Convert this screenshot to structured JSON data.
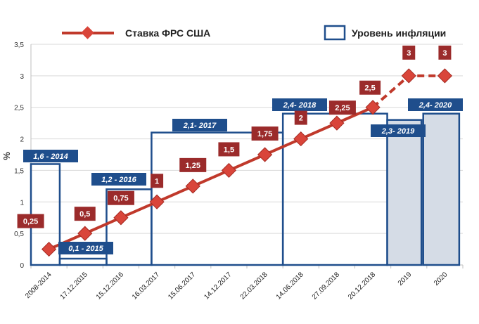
{
  "chart_data": {
    "type": "line",
    "title": "",
    "xlabel": "",
    "ylabel": "%",
    "ylim": [
      0,
      3.5
    ],
    "yticks": [
      "0",
      "0,5",
      "1",
      "1,5",
      "2",
      "2,5",
      "3",
      "3,5"
    ],
    "grid": true,
    "legend_position": "top",
    "categories": [
      "2008-2014",
      "17.12.2015",
      "15.12.2016",
      "16.03.2017",
      "15.06.2017",
      "14.12.2017",
      "22.03.2018",
      "14.06.2018",
      "27.09.2018",
      "20.12.2018",
      "2019",
      "2020"
    ],
    "series": [
      {
        "name": "Ставка ФРС США",
        "type": "line",
        "color": "#c0392b",
        "values": [
          0.25,
          0.5,
          0.75,
          1,
          1.25,
          1.5,
          1.75,
          2,
          2.25,
          2.5,
          3,
          3
        ],
        "labels": [
          "0,25",
          "0,5",
          "0,75",
          "1",
          "1,25",
          "1,5",
          "1,75",
          "2",
          "2,25",
          "2,5",
          "3",
          "3"
        ],
        "dashed_from_index": 9
      },
      {
        "name": "Уровень инфляции",
        "type": "bar",
        "color": "#1f4e8c",
        "items": [
          {
            "label": "1,6 - 2014",
            "value": 1.6,
            "from": 0,
            "to": 0.8,
            "shaded": false
          },
          {
            "label": "0,1 - 2015",
            "value": 0.1,
            "from": 0.8,
            "to": 2.1,
            "shaded": false
          },
          {
            "label": "1,2 - 2016",
            "value": 1.2,
            "from": 2.1,
            "to": 3.35,
            "shaded": false
          },
          {
            "label": "2,1- 2017",
            "value": 2.1,
            "from": 3.35,
            "to": 7.0,
            "shaded": false
          },
          {
            "label": "2,4- 2018",
            "value": 2.4,
            "from": 7.0,
            "to": 9.9,
            "shaded": false
          },
          {
            "label": "2,3- 2019",
            "value": 2.3,
            "from": 9.9,
            "to": 10.85,
            "shaded": true
          },
          {
            "label": "2,4- 2020",
            "value": 2.4,
            "from": 10.9,
            "to": 11.9,
            "shaded": true
          }
        ]
      }
    ]
  }
}
